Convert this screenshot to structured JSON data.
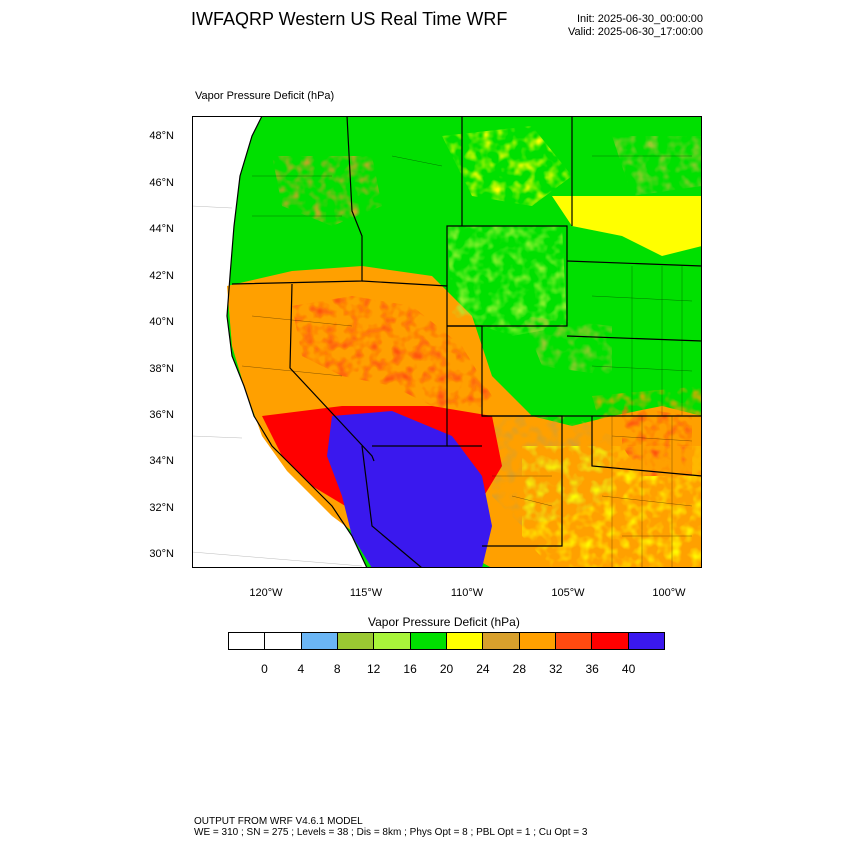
{
  "header": {
    "title": "IWFAQRP Western US Real Time WRF",
    "init": "Init: 2025-06-30_00:00:00",
    "valid": "Valid: 2025-06-30_17:00:00"
  },
  "map": {
    "field_label": "Vapor Pressure Deficit   (hPa)",
    "lat_labels": [
      "48°N",
      "46°N",
      "44°N",
      "42°N",
      "40°N",
      "38°N",
      "36°N",
      "34°N",
      "32°N",
      "30°N"
    ],
    "lon_labels": [
      "120°W",
      "115°W",
      "110°W",
      "105°W",
      "100°W"
    ]
  },
  "colorbar": {
    "title": "Vapor Pressure Deficit  (hPa)",
    "colors": [
      "#ffffff",
      "#ffffff",
      "#6bb6f5",
      "#9ac832",
      "#a8f53a",
      "#00e000",
      "#ffff00",
      "#d8a02c",
      "#ffa000",
      "#ff4a10",
      "#ff0000",
      "#3a18ee"
    ],
    "ticks": [
      "0",
      "4",
      "8",
      "12",
      "16",
      "20",
      "24",
      "28",
      "32",
      "36",
      "40"
    ]
  },
  "footer": {
    "line1": "OUTPUT FROM WRF V4.6.1 MODEL",
    "line2": "WE = 310 ; SN = 275 ; Levels = 38 ; Dis = 8km ; Phys Opt = 8 ; PBL Opt = 1 ; Cu Opt = 3"
  }
}
